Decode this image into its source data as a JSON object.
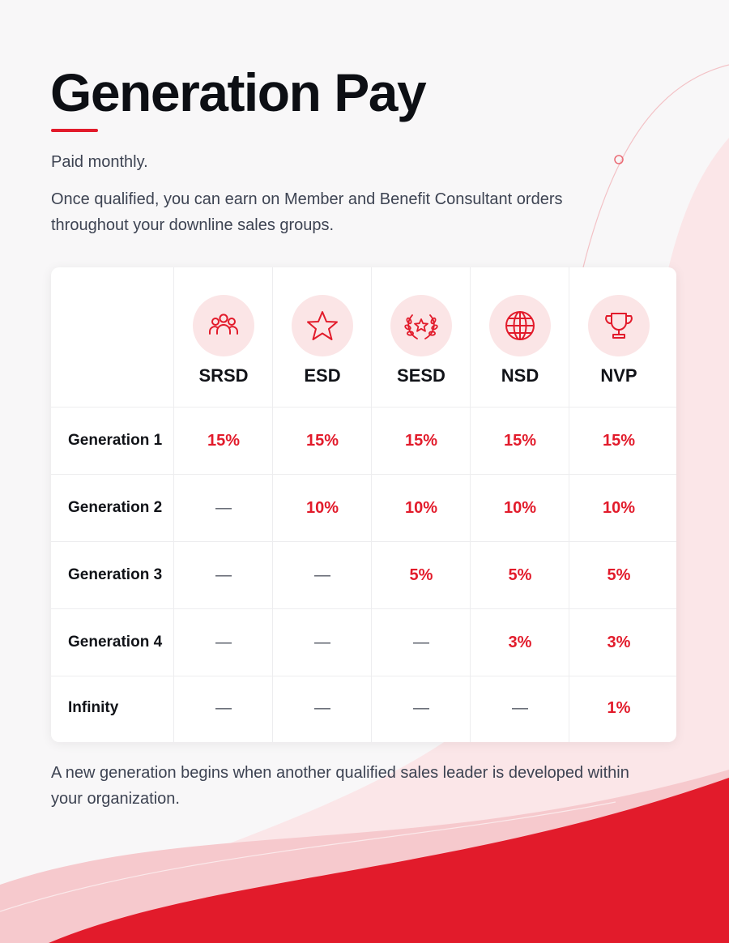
{
  "page": {
    "title": "Generation Pay",
    "paid_note": "Paid monthly.",
    "intro": "Once qualified, you can earn on Member and Benefit Consultant orders throughout your downline sales groups.",
    "footer_note": "A new generation begins when another qualified sales leader is developed within your organization."
  },
  "colors": {
    "accent": "#e21b2b",
    "icon_bg": "#fbe5e6",
    "title": "#0d0f14",
    "body_text": "#3d4352"
  },
  "table": {
    "columns": [
      {
        "label": "SRSD",
        "icon": "team-icon"
      },
      {
        "label": "ESD",
        "icon": "star-icon"
      },
      {
        "label": "SESD",
        "icon": "laurel-star-icon"
      },
      {
        "label": "NSD",
        "icon": "globe-icon"
      },
      {
        "label": "NVP",
        "icon": "trophy-icon"
      }
    ],
    "rows": [
      {
        "label": "Generation 1",
        "values": [
          "15%",
          "15%",
          "15%",
          "15%",
          "15%"
        ]
      },
      {
        "label": "Generation 2",
        "values": [
          "—",
          "10%",
          "10%",
          "10%",
          "10%"
        ]
      },
      {
        "label": "Generation 3",
        "values": [
          "—",
          "—",
          "5%",
          "5%",
          "5%"
        ]
      },
      {
        "label": "Generation 4",
        "values": [
          "—",
          "—",
          "—",
          "3%",
          "3%"
        ]
      },
      {
        "label": "Infinity",
        "values": [
          "—",
          "—",
          "—",
          "—",
          "1%"
        ]
      }
    ],
    "empty_marker": "—"
  }
}
